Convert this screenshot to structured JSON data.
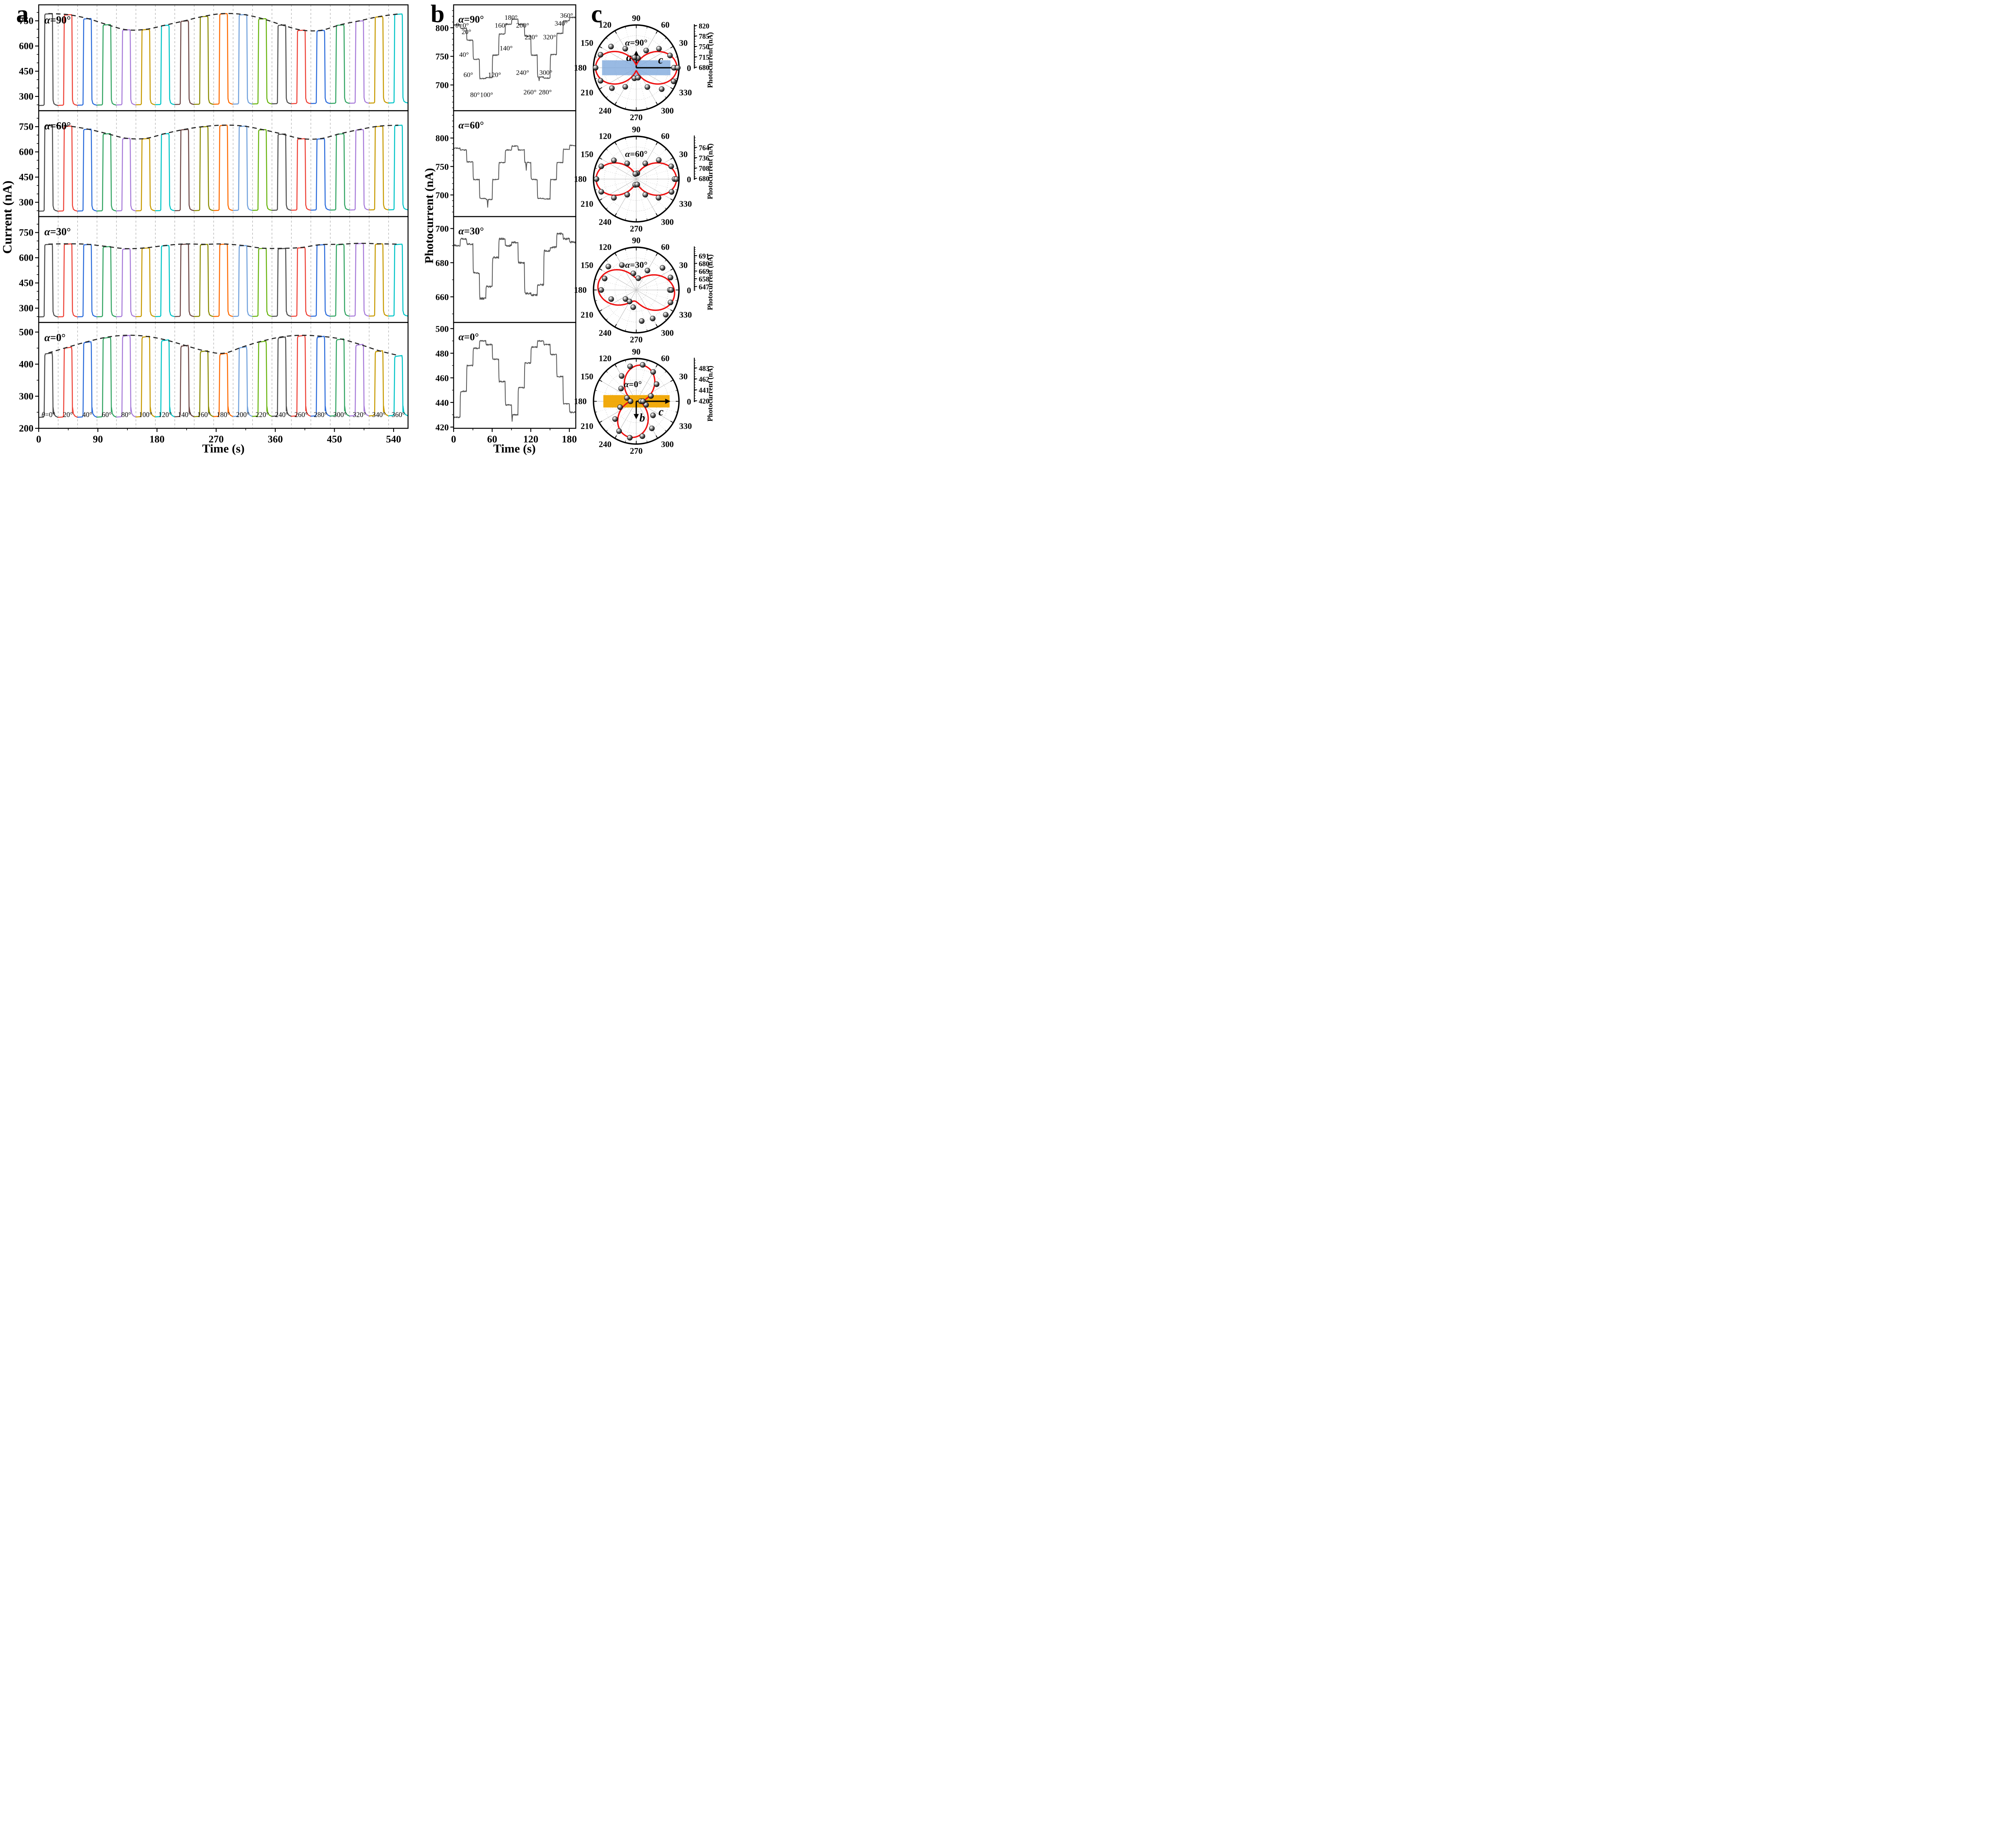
{
  "figure": {
    "panel_letters": {
      "a": "a",
      "b": "b",
      "c": "c"
    },
    "axis_labels": {
      "current": "Current (nA)",
      "time_a": "Time (s)",
      "time_b": "Time (s)",
      "photocurrent": "Photocurrent (nA)"
    }
  },
  "chart_data": [
    {
      "id": "panel-a",
      "type": "line",
      "subtype": "chopped-pulse-trains",
      "xlabel": "Time (s)",
      "ylabel": "Current (nA)",
      "x_range": [
        0,
        562
      ],
      "x_ticks": [
        0,
        90,
        180,
        270,
        360,
        450,
        540
      ],
      "x_minor_step": 45,
      "segments": 19,
      "theta_labels": [
        "θ=0°",
        "20°",
        "40°",
        "60°",
        "80°",
        "100°",
        "120°",
        "140°",
        "160°",
        "180°",
        "200°",
        "220°",
        "240°",
        "260°",
        "280°",
        "300°",
        "320°",
        "340°",
        "360°"
      ],
      "series_colors": [
        "#4d4d4d",
        "#ee4035",
        "#2a6bdb",
        "#2fa360",
        "#a77bd9",
        "#c79a00",
        "#00c4c7",
        "#6e4745",
        "#8a8a00",
        "#ff6a00",
        "#6fa0dc",
        "#68b40e",
        "#4d4d4d",
        "#ee4035",
        "#2a6bdb",
        "#2fa360",
        "#a77bd9",
        "#c79a00",
        "#00c4c7"
      ],
      "envelope_color": "#222222",
      "rows": [
        {
          "alpha_label": "α=90°",
          "y_range": [
            215,
            845
          ],
          "y_ticks": [
            300,
            450,
            600,
            750
          ],
          "y_minor_step": 50,
          "baseline_start": 243,
          "baseline_end": 258,
          "peak_values": [
            791,
            785,
            762,
            726,
            695,
            697,
            722,
            748,
            775,
            791,
            786,
            761,
            724,
            693,
            691,
            724,
            748,
            773,
            789
          ]
        },
        {
          "alpha_label": "α=60°",
          "y_range": [
            215,
            845
          ],
          "y_ticks": [
            300,
            450,
            600,
            750
          ],
          "y_minor_step": 50,
          "baseline_start": 244,
          "baseline_end": 252,
          "peak_values": [
            756,
            752,
            734,
            707,
            679,
            678,
            707,
            732,
            749,
            757,
            752,
            731,
            705,
            677,
            677,
            706,
            731,
            751,
            757
          ]
        },
        {
          "alpha_label": "α=30°",
          "y_range": [
            215,
            845
          ],
          "y_ticks": [
            300,
            450,
            600,
            750
          ],
          "y_minor_step": 50,
          "baseline_start": 245,
          "baseline_end": 250,
          "peak_values": [
            679,
            681,
            678,
            665,
            652,
            657,
            671,
            680,
            678,
            680,
            671,
            655,
            654,
            659,
            676,
            678,
            684,
            681,
            679
          ]
        },
        {
          "alpha_label": "α=0°",
          "y_range": [
            200,
            530
          ],
          "y_ticks": [
            200,
            300,
            400,
            500
          ],
          "y_minor_step": 50,
          "baseline_start": 231,
          "baseline_end": 236,
          "peak_values": [
            433,
            451,
            468,
            482,
            488,
            485,
            474,
            457,
            440,
            432,
            452,
            470,
            483,
            488,
            485,
            477,
            460,
            440,
            425
          ]
        }
      ]
    },
    {
      "id": "panel-b",
      "type": "line",
      "subtype": "staircase",
      "xlabel": "Time (s)",
      "ylabel": "Photocurrent (nA)",
      "x_range": [
        0,
        190
      ],
      "x_ticks": [
        0,
        60,
        120,
        180
      ],
      "x_minor": [
        30,
        90,
        150
      ],
      "step_seconds": 10,
      "line_color": "#575757",
      "theta_step_labels": [
        {
          "label": "θ=0°",
          "fx": 0.07,
          "fy": 0.155
        },
        {
          "label": "20°",
          "fx": 0.105,
          "fy": 0.215
        },
        {
          "label": "40°",
          "fx": 0.085,
          "fy": 0.43
        },
        {
          "label": "60°",
          "fx": 0.12,
          "fy": 0.62
        },
        {
          "label": "80°",
          "fx": 0.175,
          "fy": 0.81
        },
        {
          "label": "100°",
          "fx": 0.27,
          "fy": 0.81
        },
        {
          "label": "120°",
          "fx": 0.335,
          "fy": 0.62
        },
        {
          "label": "140°",
          "fx": 0.43,
          "fy": 0.37
        },
        {
          "label": "160°",
          "fx": 0.39,
          "fy": 0.155
        },
        {
          "label": "180°",
          "fx": 0.47,
          "fy": 0.08
        },
        {
          "label": "200°",
          "fx": 0.565,
          "fy": 0.155
        },
        {
          "label": "220°",
          "fx": 0.635,
          "fy": 0.265
        },
        {
          "label": "240°",
          "fx": 0.565,
          "fy": 0.6
        },
        {
          "label": "260°",
          "fx": 0.625,
          "fy": 0.785
        },
        {
          "label": "280°",
          "fx": 0.75,
          "fy": 0.785
        },
        {
          "label": "300°",
          "fx": 0.755,
          "fy": 0.6
        },
        {
          "label": "320°",
          "fx": 0.785,
          "fy": 0.265
        },
        {
          "label": "340°",
          "fx": 0.88,
          "fy": 0.135
        },
        {
          "label": "360°",
          "fx": 0.925,
          "fy": 0.06
        }
      ],
      "rows": [
        {
          "alpha_label": "α=90°",
          "y_range": [
            655,
            840
          ],
          "y_ticks": [
            700,
            750,
            800
          ],
          "y_minor_step": 10,
          "values": [
            805,
            799,
            778,
            745,
            711,
            713,
            752,
            789,
            806,
            815,
            806,
            785,
            752,
            714,
            712,
            753,
            790,
            812,
            818
          ],
          "spikes": [
            {
              "t": 133,
              "depth": 7
            }
          ]
        },
        {
          "alpha_label": "α=60°",
          "y_range": [
            662,
            848
          ],
          "y_ticks": [
            700,
            750,
            800
          ],
          "y_minor_step": 10,
          "values": [
            782,
            779,
            758,
            727,
            694,
            692,
            727,
            757,
            779,
            786,
            779,
            757,
            727,
            694,
            693,
            727,
            757,
            780,
            787
          ],
          "spikes": [
            {
              "t": 53,
              "depth": 13
            },
            {
              "t": 113,
              "depth": 13
            }
          ]
        },
        {
          "alpha_label": "α=30°",
          "y_range": [
            645,
            707
          ],
          "y_ticks": [
            660,
            680,
            700
          ],
          "y_minor_step": 10,
          "values": [
            690,
            694,
            691,
            674,
            659,
            666,
            683,
            694,
            690,
            692,
            680,
            662,
            661,
            667,
            687,
            689,
            697,
            694,
            692
          ],
          "spikes": []
        },
        {
          "alpha_label": "α=0°",
          "y_range": [
            419,
            505
          ],
          "y_ticks": [
            420,
            440,
            460,
            480,
            500
          ],
          "y_minor_step": 10,
          "values": [
            428,
            449,
            470,
            484,
            490,
            487,
            475,
            457,
            438,
            430,
            452,
            472,
            485,
            490,
            487,
            479,
            461,
            439,
            432
          ],
          "spikes": [
            {
              "t": 91,
              "depth": 5
            }
          ]
        }
      ]
    },
    {
      "id": "panel-c",
      "type": "polar",
      "radial_label": "Photocurrent (nA)",
      "angle_labels_deg": [
        0,
        30,
        60,
        90,
        120,
        150,
        180,
        210,
        240,
        270,
        300,
        330
      ],
      "theta_points_deg": [
        0,
        20,
        40,
        60,
        80,
        100,
        120,
        140,
        160,
        180,
        200,
        220,
        240,
        260,
        280,
        300,
        320,
        340,
        360
      ],
      "curve_color": "#ee1111",
      "plots": [
        {
          "alpha_label": "α=90°",
          "r_range": [
            678,
            822
          ],
          "r_ticks": [
            680,
            715,
            750,
            785,
            820
          ],
          "values": [
            805,
            799,
            778,
            745,
            711,
            713,
            752,
            789,
            806,
            815,
            806,
            785,
            752,
            714,
            712,
            753,
            790,
            812,
            818
          ],
          "fit": {
            "A": 688,
            "B": 127,
            "phi_deg": 0
          },
          "alpha_pos": [
            0.0,
            -0.52
          ],
          "inset": {
            "rect": {
              "x": -0.8,
              "y": -0.175,
              "w": 1.6,
              "h": 0.35,
              "color": "#7fa9dc",
              "opacity": 0.8
            },
            "arrows": [
              {
                "dir": "up",
                "len": 0.4,
                "label": "a",
                "lx": -0.17,
                "ly": -0.16
              },
              {
                "dir": "right",
                "len": 1.04,
                "label": "c",
                "lx": 0.57,
                "ly": -0.1
              }
            ]
          }
        },
        {
          "alpha_label": "α=60°",
          "r_range": [
            678,
            794
          ],
          "r_ticks": [
            680,
            708,
            736,
            764
          ],
          "values": [
            782,
            779,
            758,
            727,
            694,
            692,
            727,
            757,
            779,
            786,
            779,
            757,
            727,
            694,
            693,
            727,
            757,
            780,
            787
          ],
          "fit": {
            "A": 688,
            "B": 99,
            "phi_deg": 0
          },
          "alpha_pos": [
            0.0,
            -0.52
          ],
          "inset": null
        },
        {
          "alpha_label": "α=30°",
          "r_range": [
            642,
            703
          ],
          "r_ticks": [
            647,
            658,
            669,
            680,
            691
          ],
          "values": [
            690,
            694,
            691,
            674,
            659,
            666,
            683,
            694,
            690,
            692,
            680,
            662,
            661,
            667,
            687,
            689,
            697,
            694,
            692
          ],
          "fit": {
            "A": 658,
            "B": 39,
            "phi_deg": -8
          },
          "alpha_pos": [
            0.0,
            -0.52
          ],
          "inset": null
        },
        {
          "alpha_label": "α=0°",
          "r_range": [
            419,
            501
          ],
          "r_ticks": [
            420,
            441,
            462,
            483
          ],
          "values": [
            428,
            449,
            470,
            484,
            490,
            487,
            475,
            457,
            438,
            430,
            452,
            472,
            485,
            490,
            487,
            479,
            461,
            439,
            432
          ],
          "fit": {
            "A": 429,
            "B": 60,
            "phi_deg": 80
          },
          "alpha_pos": [
            -0.08,
            -0.33
          ],
          "inset": {
            "rect": {
              "x": -0.77,
              "y": -0.145,
              "w": 1.55,
              "h": 0.29,
              "color": "#f0a500",
              "opacity": 0.95
            },
            "arrows": [
              {
                "dir": "right",
                "len": 0.8,
                "label": "c",
                "lx": 0.58,
                "ly": 0.33
              },
              {
                "dir": "down",
                "len": 0.42,
                "label": "b",
                "lx": 0.14,
                "ly": 0.47
              }
            ]
          }
        }
      ]
    }
  ]
}
